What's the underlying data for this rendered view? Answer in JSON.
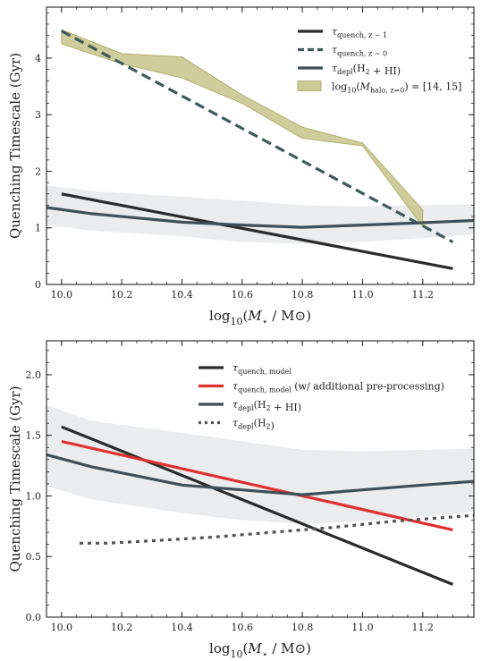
{
  "chart_data": [
    {
      "type": "line",
      "xlabel": "log10(M⋆ / M⊙)",
      "ylabel": "Quenching Timescale (Gyr)",
      "xlim": [
        9.95,
        11.37
      ],
      "ylim": [
        0,
        4.9
      ],
      "xticks": [
        "10.0",
        "10.2",
        "10.4",
        "10.6",
        "10.8",
        "11.0",
        "11.2"
      ],
      "yticks": [
        "0",
        "1",
        "2",
        "3",
        "4"
      ],
      "legend_position": "top-right",
      "series": [
        {
          "name": "τquench, z ∼ 1",
          "style": "solid",
          "color": "#2b2b2b",
          "x": [
            10.0,
            11.3
          ],
          "y": [
            1.6,
            0.28
          ]
        },
        {
          "name": "τquench, z ∼ 0",
          "style": "dashed",
          "color": "#3f5a5a",
          "x": [
            10.0,
            11.3
          ],
          "y": [
            4.48,
            0.75
          ]
        },
        {
          "name": "τdepl(H2 + HI)",
          "style": "solid",
          "color": "#3e4f57",
          "x": [
            9.95,
            10.1,
            10.4,
            10.6,
            10.8,
            11.0,
            11.2,
            11.37
          ],
          "y": [
            1.36,
            1.25,
            1.1,
            1.05,
            1.01,
            1.05,
            1.09,
            1.13
          ]
        }
      ],
      "bands": [
        {
          "name": "τdepl(H2 + HI) scatter",
          "color": "#e3e6e7",
          "x": [
            9.95,
            10.1,
            10.4,
            10.6,
            10.8,
            11.0,
            11.2,
            11.37
          ],
          "upper": [
            1.75,
            1.65,
            1.55,
            1.48,
            1.4,
            1.38,
            1.4,
            1.42
          ],
          "lower": [
            1.05,
            0.95,
            0.85,
            0.75,
            0.72,
            0.75,
            0.82,
            0.88
          ]
        },
        {
          "name": "log10(Mhalo, z=0) = [14, 15]",
          "color": "#c7c48a",
          "x": [
            10.0,
            10.2,
            10.4,
            10.6,
            10.8,
            11.0,
            11.2
          ],
          "upper": [
            4.5,
            4.08,
            4.02,
            3.35,
            2.78,
            2.5,
            1.32
          ],
          "lower": [
            4.25,
            3.9,
            3.65,
            3.2,
            2.58,
            2.45,
            1.02
          ]
        }
      ],
      "legend": [
        {
          "label": "τquench, z ∼ 1",
          "style": "solid",
          "color": "#2b2b2b"
        },
        {
          "label": "τquench, z ∼ 0",
          "style": "dashed",
          "color": "#3f5a5a"
        },
        {
          "label": "τdepl(H2 + HI)",
          "style": "solid",
          "color": "#3e4f57"
        },
        {
          "label": "log10(Mhalo, z=0) = [14, 15]",
          "style": "patch",
          "color": "#c7c48a"
        }
      ]
    },
    {
      "type": "line",
      "xlabel": "log10(M⋆ / M⊙)",
      "ylabel": "Quenching Timescale (Gyr)",
      "xlim": [
        9.95,
        11.37
      ],
      "ylim": [
        0,
        2.28
      ],
      "xticks": [
        "10.0",
        "10.2",
        "10.4",
        "10.6",
        "10.8",
        "11.0",
        "11.2"
      ],
      "yticks": [
        "0.0",
        "0.5",
        "1.0",
        "1.5",
        "2.0"
      ],
      "legend_position": "top-right",
      "series": [
        {
          "name": "τquench, model",
          "style": "solid",
          "color": "#2b2b2b",
          "x": [
            10.0,
            11.3
          ],
          "y": [
            1.57,
            0.27
          ]
        },
        {
          "name": "τquench, model (w/ additional pre-processing)",
          "style": "solid",
          "color": "#e03030",
          "x": [
            10.0,
            11.3
          ],
          "y": [
            1.45,
            0.72
          ]
        },
        {
          "name": "τdepl(H2 + HI)",
          "style": "solid",
          "color": "#3e4f57",
          "x": [
            9.95,
            10.1,
            10.4,
            10.6,
            10.8,
            11.0,
            11.2,
            11.37
          ],
          "y": [
            1.34,
            1.24,
            1.09,
            1.05,
            1.01,
            1.05,
            1.09,
            1.12
          ]
        },
        {
          "name": "τdepl(H2)",
          "style": "dotted",
          "color": "#555555",
          "x": [
            10.06,
            10.15,
            10.3,
            10.5,
            10.7,
            10.9,
            11.1,
            11.37
          ],
          "y": [
            0.61,
            0.61,
            0.63,
            0.66,
            0.7,
            0.74,
            0.79,
            0.84
          ]
        }
      ],
      "bands": [
        {
          "name": "τdepl(H2 + HI) scatter",
          "color": "#e3e6e7",
          "x": [
            9.95,
            10.1,
            10.4,
            10.6,
            10.8,
            11.0,
            11.2,
            11.37
          ],
          "upper": [
            1.75,
            1.62,
            1.52,
            1.45,
            1.38,
            1.37,
            1.38,
            1.39
          ],
          "lower": [
            1.08,
            0.97,
            0.86,
            0.8,
            0.77,
            0.79,
            0.83,
            0.87
          ]
        }
      ],
      "legend": [
        {
          "label": "τquench, model",
          "style": "solid",
          "color": "#2b2b2b"
        },
        {
          "label": "τquench, model (w/ additional pre-processing)",
          "style": "solid",
          "color": "#e03030"
        },
        {
          "label": "τdepl(H2 + HI)",
          "style": "solid",
          "color": "#3e4f57"
        },
        {
          "label": "τdepl(H2)",
          "style": "dotted",
          "color": "#555555"
        }
      ]
    }
  ]
}
